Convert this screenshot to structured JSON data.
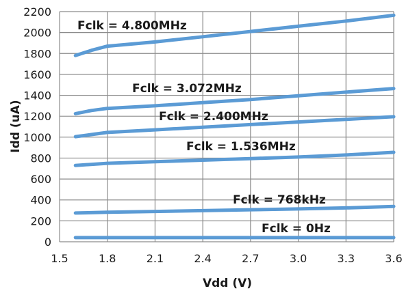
{
  "chart_data": {
    "type": "line",
    "xlabel": "Vdd (V)",
    "ylabel": "Idd (uA)",
    "xlim": [
      1.5,
      3.6
    ],
    "ylim": [
      0,
      2200
    ],
    "x_ticks": [
      "1.5",
      "1.8",
      "2.1",
      "2.4",
      "2.7",
      "3.0",
      "3.3",
      "3.6"
    ],
    "y_ticks": [
      "0",
      "200",
      "400",
      "600",
      "800",
      "1000",
      "1200",
      "1400",
      "1600",
      "1800",
      "2000",
      "2200"
    ],
    "grid": true,
    "line_color": "#5b9bd5",
    "series": [
      {
        "name": "Fclk = 4.800MHz",
        "x": [
          1.6,
          1.7,
          1.8,
          2.1,
          2.4,
          2.7,
          3.0,
          3.3,
          3.6
        ],
        "y": [
          1780,
          1830,
          1870,
          1910,
          1960,
          2010,
          2060,
          2110,
          2165
        ]
      },
      {
        "name": "Fclk = 3.072MHz",
        "x": [
          1.6,
          1.7,
          1.8,
          2.1,
          2.4,
          2.7,
          3.0,
          3.3,
          3.6
        ],
        "y": [
          1225,
          1255,
          1275,
          1300,
          1330,
          1360,
          1395,
          1430,
          1465
        ]
      },
      {
        "name": "Fclk = 2.400MHz",
        "x": [
          1.6,
          1.7,
          1.8,
          2.1,
          2.4,
          2.7,
          3.0,
          3.3,
          3.6
        ],
        "y": [
          1005,
          1025,
          1045,
          1070,
          1095,
          1120,
          1145,
          1170,
          1195
        ]
      },
      {
        "name": "Fclk = 1.536MHz",
        "x": [
          1.6,
          1.8,
          2.1,
          2.4,
          2.7,
          3.0,
          3.3,
          3.6
        ],
        "y": [
          730,
          750,
          765,
          780,
          795,
          810,
          830,
          855
        ]
      },
      {
        "name": "Fclk = 768kHz",
        "x": [
          1.6,
          1.8,
          2.1,
          2.4,
          2.7,
          3.0,
          3.3,
          3.6
        ],
        "y": [
          275,
          282,
          290,
          298,
          306,
          314,
          324,
          338
        ]
      },
      {
        "name": "Fclk = 0Hz",
        "x": [
          1.6,
          3.6
        ],
        "y": [
          40,
          40
        ]
      }
    ]
  }
}
